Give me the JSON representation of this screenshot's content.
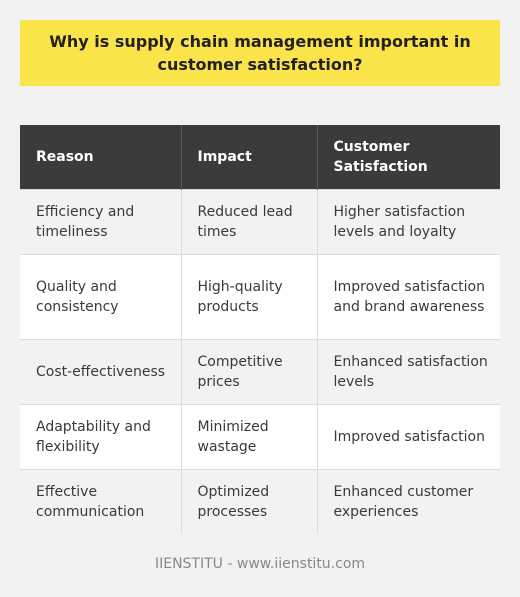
{
  "title": "Why is supply chain management important in customer satisfaction?",
  "table": {
    "headers": [
      "Reason",
      "Impact",
      "Customer Satisfaction"
    ],
    "rows": [
      [
        "Efficiency and timeliness",
        "Reduced lead times",
        "Higher satisfaction levels and loyalty"
      ],
      [
        "Quality and consistency",
        "High-quality products",
        "Improved satisfaction and brand awareness"
      ],
      [
        "Cost-effectiveness",
        "Competitive prices",
        "Enhanced satisfaction levels"
      ],
      [
        "Adaptability and flexibility",
        "Minimized wastage",
        "Improved satisfaction"
      ],
      [
        "Effective communication",
        "Optimized processes",
        "Enhanced customer experiences"
      ]
    ]
  },
  "footer": "IIENSTITU - www.iienstitu.com",
  "colors": {
    "title_background": "#fbe44a",
    "header_background": "#3b3b3b",
    "row_alt_background": "#f2f2f2"
  }
}
